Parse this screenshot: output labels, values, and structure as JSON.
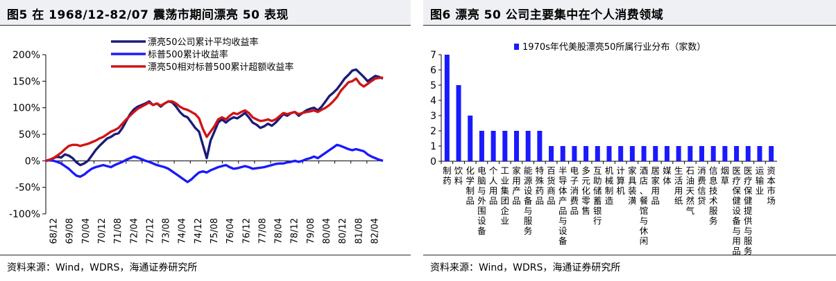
{
  "left": {
    "title": "图5  在 1968/12-82/07 震荡市期间漂亮 50 表现",
    "source": "资料来源：Wind，WDRS，海通证券研究所"
  },
  "right": {
    "title": "图6  漂亮 50 公司主要集中在个人消费领域",
    "source": "资料来源：Wind，WDRS，海通证券研究所"
  },
  "chart_data": [
    {
      "type": "line",
      "title": "",
      "xlabel": "",
      "ylabel": "",
      "ylim": [
        -1.0,
        2.0
      ],
      "yticks": [
        "200%",
        "150%",
        "100%",
        "50%",
        "0%",
        "-50%",
        "-100%"
      ],
      "xticks": [
        "68/12",
        "69/08",
        "70/04",
        "70/12",
        "71/08",
        "72/04",
        "72/12",
        "73/08",
        "74/04",
        "74/12",
        "75/08",
        "76/04",
        "76/12",
        "77/08",
        "78/04",
        "78/12",
        "79/08",
        "80/04",
        "80/12",
        "81/08",
        "82/04"
      ],
      "legend_position": "top-left",
      "grid": false,
      "series": [
        {
          "name": "漂亮50公司累计平均收益率",
          "color": "#1b1b7a",
          "values": [
            0,
            0.02,
            0.05,
            0.08,
            0.06,
            0.12,
            0.1,
            0.05,
            -0.03,
            -0.08,
            -0.05,
            0.0,
            0.1,
            0.2,
            0.28,
            0.35,
            0.42,
            0.45,
            0.5,
            0.52,
            0.62,
            0.75,
            0.88,
            0.97,
            1.02,
            1.05,
            1.08,
            1.12,
            1.05,
            1.08,
            1.02,
            1.08,
            1.12,
            1.1,
            1.02,
            0.92,
            0.85,
            0.82,
            0.72,
            0.62,
            0.55,
            0.3,
            0.05,
            0.38,
            0.55,
            0.72,
            0.78,
            0.72,
            0.78,
            0.82,
            0.8,
            0.85,
            0.9,
            0.82,
            0.72,
            0.68,
            0.62,
            0.65,
            0.7,
            0.66,
            0.72,
            0.8,
            0.88,
            0.85,
            0.9,
            0.92,
            0.85,
            0.9,
            0.95,
            0.98,
            1.0,
            0.95,
            1.02,
            1.12,
            1.22,
            1.28,
            1.35,
            1.45,
            1.55,
            1.62,
            1.7,
            1.72,
            1.65,
            1.58,
            1.5,
            1.55,
            1.6,
            1.58,
            1.55
          ]
        },
        {
          "name": "标普500累计收益率",
          "color": "#1a1aff",
          "values": [
            0,
            0.01,
            0.0,
            -0.02,
            -0.05,
            -0.1,
            -0.15,
            -0.22,
            -0.28,
            -0.3,
            -0.26,
            -0.2,
            -0.15,
            -0.12,
            -0.1,
            -0.08,
            -0.1,
            -0.12,
            -0.08,
            -0.05,
            -0.02,
            0.02,
            0.05,
            0.08,
            0.06,
            0.03,
            0.0,
            -0.02,
            -0.05,
            -0.08,
            -0.1,
            -0.12,
            -0.15,
            -0.2,
            -0.25,
            -0.3,
            -0.35,
            -0.4,
            -0.35,
            -0.28,
            -0.22,
            -0.2,
            -0.22,
            -0.18,
            -0.15,
            -0.12,
            -0.1,
            -0.08,
            -0.12,
            -0.15,
            -0.14,
            -0.12,
            -0.1,
            -0.12,
            -0.15,
            -0.14,
            -0.13,
            -0.12,
            -0.1,
            -0.08,
            -0.06,
            -0.05,
            -0.05,
            -0.03,
            -0.02,
            0.0,
            -0.02,
            0.0,
            0.03,
            0.05,
            0.08,
            0.05,
            0.1,
            0.15,
            0.2,
            0.25,
            0.3,
            0.28,
            0.25,
            0.22,
            0.2,
            0.22,
            0.2,
            0.18,
            0.12,
            0.08,
            0.05,
            0.02,
            0.0
          ]
        },
        {
          "name": "漂亮50相对标普500累计超额收益率",
          "color": "#d01414",
          "values": [
            0,
            0.02,
            0.05,
            0.1,
            0.15,
            0.22,
            0.28,
            0.3,
            0.3,
            0.28,
            0.3,
            0.32,
            0.35,
            0.38,
            0.42,
            0.45,
            0.5,
            0.55,
            0.58,
            0.62,
            0.7,
            0.78,
            0.85,
            0.92,
            0.98,
            1.02,
            1.06,
            1.1,
            1.05,
            1.08,
            1.04,
            1.08,
            1.12,
            1.12,
            1.08,
            1.02,
            0.98,
            0.96,
            0.92,
            0.88,
            0.8,
            0.6,
            0.45,
            0.55,
            0.65,
            0.78,
            0.82,
            0.78,
            0.85,
            0.9,
            0.88,
            0.92,
            0.95,
            0.9,
            0.82,
            0.78,
            0.75,
            0.76,
            0.78,
            0.75,
            0.78,
            0.84,
            0.9,
            0.88,
            0.9,
            0.92,
            0.88,
            0.9,
            0.92,
            0.93,
            0.95,
            0.92,
            0.96,
            1.0,
            1.05,
            1.12,
            1.2,
            1.32,
            1.4,
            1.48,
            1.5,
            1.55,
            1.45,
            1.4,
            1.45,
            1.5,
            1.55,
            1.56,
            1.57
          ]
        }
      ]
    },
    {
      "type": "bar",
      "title": "",
      "xlabel": "",
      "ylabel": "",
      "ylim": [
        0,
        7
      ],
      "yticks": [
        "7",
        "6",
        "5",
        "4",
        "3",
        "2",
        "1",
        "0"
      ],
      "legend_position": "top",
      "grid": false,
      "series": [
        {
          "name": "1970s年代美股漂亮50所属行业分布（家数）",
          "color": "#1a1aff"
        }
      ],
      "categories": [
        "制药",
        "饮料",
        "化学制品",
        "电脑与外围设备",
        "个人用品",
        "工业集团企业",
        "家用产品",
        "能源设备与服务",
        "特殊药品",
        "百货商品",
        "半导体产品与设备",
        "电子消费品",
        "多元化零售",
        "互助储蓄银行",
        "机械制造",
        "计算机",
        "家具装潢",
        "酒店、餐馆与休闲",
        "居家用品",
        "媒体",
        "生活用纸",
        "石油天然气",
        "消费信贷",
        "信息技术服务",
        "烟草",
        "医疗保健设备与用品",
        "医疗保健提供与服务",
        "运输业",
        "资本市场"
      ],
      "values": [
        7,
        5,
        3,
        2,
        2,
        2,
        2,
        2,
        2,
        1,
        1,
        1,
        1,
        1,
        1,
        1,
        1,
        1,
        1,
        1,
        1,
        1,
        1,
        1,
        1,
        1,
        1,
        1,
        1
      ]
    }
  ]
}
